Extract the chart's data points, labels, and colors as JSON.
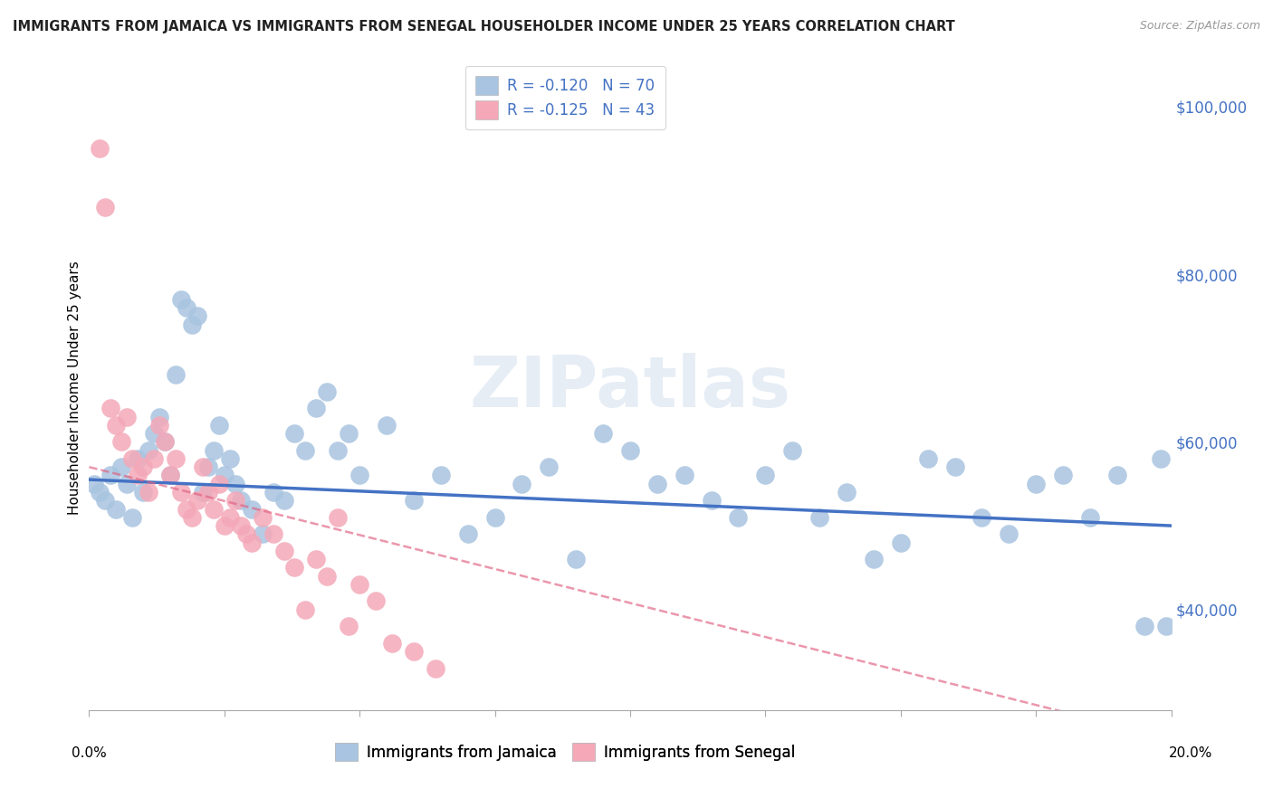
{
  "title": "IMMIGRANTS FROM JAMAICA VS IMMIGRANTS FROM SENEGAL HOUSEHOLDER INCOME UNDER 25 YEARS CORRELATION CHART",
  "source": "Source: ZipAtlas.com",
  "ylabel": "Householder Income Under 25 years",
  "xlim": [
    0.0,
    0.2
  ],
  "ylim": [
    28000,
    105000
  ],
  "yticks": [
    40000,
    60000,
    80000,
    100000
  ],
  "ytick_labels": [
    "$40,000",
    "$60,000",
    "$80,000",
    "$100,000"
  ],
  "r_jamaica": -0.12,
  "n_jamaica": 70,
  "r_senegal": -0.125,
  "n_senegal": 43,
  "color_jamaica": "#a8c4e0",
  "color_senegal": "#f4a8b8",
  "line_color_jamaica": "#4472c4",
  "line_color_senegal": "#e06080",
  "watermark_text": "ZIPatlas",
  "background_color": "#ffffff",
  "grid_color": "#cccccc",
  "tick_label_color": "#4472c4",
  "title_color": "#222222",
  "source_color": "#999999",
  "jamaica_x": [
    0.001,
    0.002,
    0.003,
    0.004,
    0.005,
    0.006,
    0.007,
    0.008,
    0.009,
    0.01,
    0.011,
    0.012,
    0.013,
    0.014,
    0.015,
    0.016,
    0.017,
    0.018,
    0.019,
    0.02,
    0.021,
    0.022,
    0.023,
    0.024,
    0.025,
    0.026,
    0.027,
    0.028,
    0.03,
    0.032,
    0.034,
    0.036,
    0.038,
    0.04,
    0.042,
    0.044,
    0.046,
    0.048,
    0.05,
    0.055,
    0.06,
    0.065,
    0.07,
    0.075,
    0.08,
    0.085,
    0.09,
    0.095,
    0.1,
    0.105,
    0.11,
    0.115,
    0.12,
    0.125,
    0.13,
    0.135,
    0.14,
    0.145,
    0.15,
    0.155,
    0.16,
    0.165,
    0.17,
    0.175,
    0.18,
    0.185,
    0.19,
    0.195,
    0.198,
    0.199
  ],
  "jamaica_y": [
    55000,
    54000,
    53000,
    56000,
    52000,
    57000,
    55000,
    51000,
    58000,
    54000,
    59000,
    61000,
    63000,
    60000,
    56000,
    68000,
    77000,
    76000,
    74000,
    75000,
    54000,
    57000,
    59000,
    62000,
    56000,
    58000,
    55000,
    53000,
    52000,
    49000,
    54000,
    53000,
    61000,
    59000,
    64000,
    66000,
    59000,
    61000,
    56000,
    62000,
    53000,
    56000,
    49000,
    51000,
    55000,
    57000,
    46000,
    61000,
    59000,
    55000,
    56000,
    53000,
    51000,
    56000,
    59000,
    51000,
    54000,
    46000,
    48000,
    58000,
    57000,
    51000,
    49000,
    55000,
    56000,
    51000,
    56000,
    38000,
    58000,
    38000
  ],
  "senegal_x": [
    0.002,
    0.003,
    0.004,
    0.005,
    0.006,
    0.007,
    0.008,
    0.009,
    0.01,
    0.011,
    0.012,
    0.013,
    0.014,
    0.015,
    0.016,
    0.017,
    0.018,
    0.019,
    0.02,
    0.021,
    0.022,
    0.023,
    0.024,
    0.025,
    0.026,
    0.027,
    0.028,
    0.029,
    0.03,
    0.032,
    0.034,
    0.036,
    0.038,
    0.04,
    0.042,
    0.044,
    0.046,
    0.048,
    0.05,
    0.053,
    0.056,
    0.06,
    0.064
  ],
  "senegal_y": [
    95000,
    88000,
    64000,
    62000,
    60000,
    63000,
    58000,
    56000,
    57000,
    54000,
    58000,
    62000,
    60000,
    56000,
    58000,
    54000,
    52000,
    51000,
    53000,
    57000,
    54000,
    52000,
    55000,
    50000,
    51000,
    53000,
    50000,
    49000,
    48000,
    51000,
    49000,
    47000,
    45000,
    40000,
    46000,
    44000,
    51000,
    38000,
    43000,
    41000,
    36000,
    35000,
    33000
  ],
  "line_jamaica_x0": 0.0,
  "line_jamaica_x1": 0.2,
  "line_jamaica_y0": 55500,
  "line_jamaica_y1": 50000,
  "line_senegal_x0": 0.0,
  "line_senegal_x1": 0.185,
  "line_senegal_y0": 57000,
  "line_senegal_y1": 27000
}
